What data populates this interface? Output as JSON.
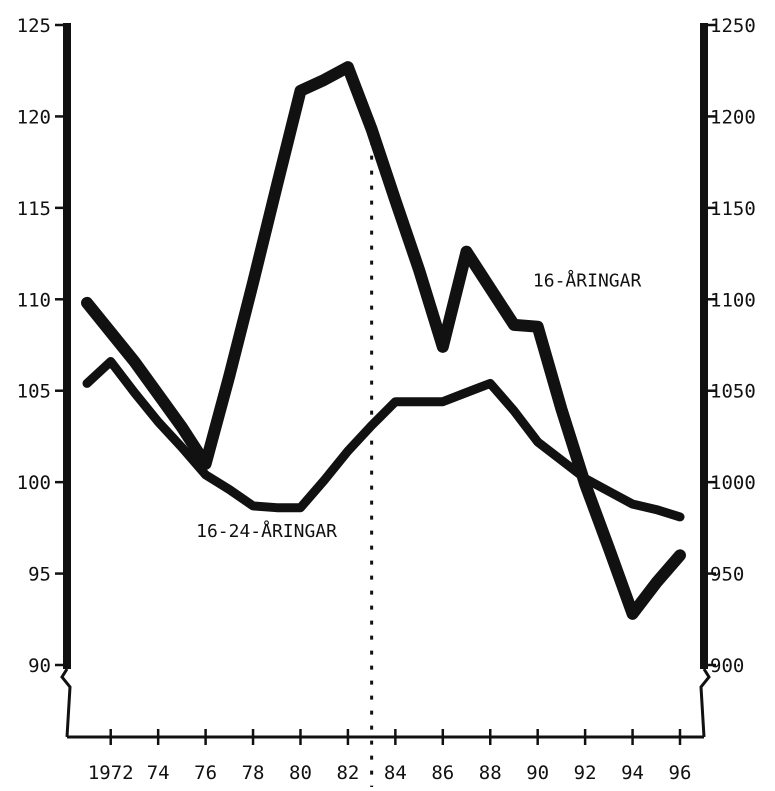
{
  "chart_data": {
    "type": "line",
    "title": "",
    "xlabel": "",
    "ylabel_left": "",
    "ylabel_right": "",
    "x_range": [
      1971,
      1996
    ],
    "x_ticks": [
      {
        "value": 1972,
        "label": "1972"
      },
      {
        "value": 1974,
        "label": "74"
      },
      {
        "value": 1976,
        "label": "76"
      },
      {
        "value": 1978,
        "label": "78"
      },
      {
        "value": 1980,
        "label": "80"
      },
      {
        "value": 1982,
        "label": "82"
      },
      {
        "value": 1984,
        "label": "84"
      },
      {
        "value": 1986,
        "label": "86"
      },
      {
        "value": 1988,
        "label": "88"
      },
      {
        "value": 1990,
        "label": "90"
      },
      {
        "value": 1992,
        "label": "92"
      },
      {
        "value": 1994,
        "label": "94"
      },
      {
        "value": 1996,
        "label": "96"
      }
    ],
    "y_left": {
      "range": [
        90,
        125
      ],
      "ticks": [
        {
          "value": 90,
          "label": "90"
        },
        {
          "value": 95,
          "label": "95"
        },
        {
          "value": 100,
          "label": "100"
        },
        {
          "value": 105,
          "label": "105"
        },
        {
          "value": 110,
          "label": "110"
        },
        {
          "value": 115,
          "label": "115"
        },
        {
          "value": 120,
          "label": "120"
        },
        {
          "value": 125,
          "label": "125"
        }
      ]
    },
    "y_right": {
      "range": [
        900,
        1250
      ],
      "ticks": [
        {
          "value": 900,
          "label": "900"
        },
        {
          "value": 950,
          "label": "950"
        },
        {
          "value": 1000,
          "label": "1000"
        },
        {
          "value": 1050,
          "label": "1050"
        },
        {
          "value": 1100,
          "label": "1100"
        },
        {
          "value": 1150,
          "label": "1150"
        },
        {
          "value": 1200,
          "label": "1200"
        },
        {
          "value": 1250,
          "label": "1250"
        }
      ]
    },
    "marker_line_x": 1983,
    "axis_break": true,
    "grid": false,
    "series": [
      {
        "name": "16-ÅRINGAR",
        "axis": "left",
        "stroke_width": 12,
        "color": "#111111",
        "points": [
          [
            1971,
            109.8
          ],
          [
            1972,
            108.2
          ],
          [
            1973,
            106.6
          ],
          [
            1974,
            104.8
          ],
          [
            1975,
            103.0
          ],
          [
            1976,
            101.0
          ],
          [
            1977,
            105.8
          ],
          [
            1978,
            110.9
          ],
          [
            1979,
            116.2
          ],
          [
            1980,
            121.4
          ],
          [
            1981,
            122.0
          ],
          [
            1982,
            122.7
          ],
          [
            1983,
            119.3
          ],
          [
            1984,
            115.4
          ],
          [
            1985,
            111.6
          ],
          [
            1986,
            107.4
          ],
          [
            1987,
            112.6
          ],
          [
            1988,
            110.6
          ],
          [
            1989,
            108.6
          ],
          [
            1990,
            108.5
          ],
          [
            1991,
            104.0
          ],
          [
            1992,
            99.9
          ],
          [
            1993,
            96.4
          ],
          [
            1994,
            92.8
          ],
          [
            1995,
            94.5
          ],
          [
            1996,
            96.0
          ]
        ]
      },
      {
        "name": "16-24-ÅRINGAR",
        "axis": "right",
        "stroke_width": 9,
        "color": "#111111",
        "points": [
          [
            1971,
            1054
          ],
          [
            1972,
            1066
          ],
          [
            1973,
            1049
          ],
          [
            1974,
            1033
          ],
          [
            1975,
            1019
          ],
          [
            1976,
            1004
          ],
          [
            1977,
            996
          ],
          [
            1978,
            987
          ],
          [
            1979,
            986
          ],
          [
            1980,
            986
          ],
          [
            1981,
            1001
          ],
          [
            1982,
            1017
          ],
          [
            1983,
            1031
          ],
          [
            1984,
            1044
          ],
          [
            1985,
            1044
          ],
          [
            1986,
            1044
          ],
          [
            1987,
            1049
          ],
          [
            1988,
            1054
          ],
          [
            1989,
            1039
          ],
          [
            1990,
            1022
          ],
          [
            1991,
            1012
          ],
          [
            1992,
            1002
          ],
          [
            1993,
            995
          ],
          [
            1994,
            988
          ],
          [
            1995,
            985
          ],
          [
            1996,
            981
          ]
        ]
      }
    ],
    "annotations": [
      {
        "series": "16-ÅRINGAR",
        "text": "16-ÅRINGAR",
        "anchor": {
          "x": 1989.8,
          "y_left": 110.7
        }
      },
      {
        "series": "16-24-ÅRINGAR",
        "text": "16-24-ÅRINGAR",
        "anchor": {
          "x": 1975.6,
          "y_left": 97.0
        }
      }
    ]
  }
}
